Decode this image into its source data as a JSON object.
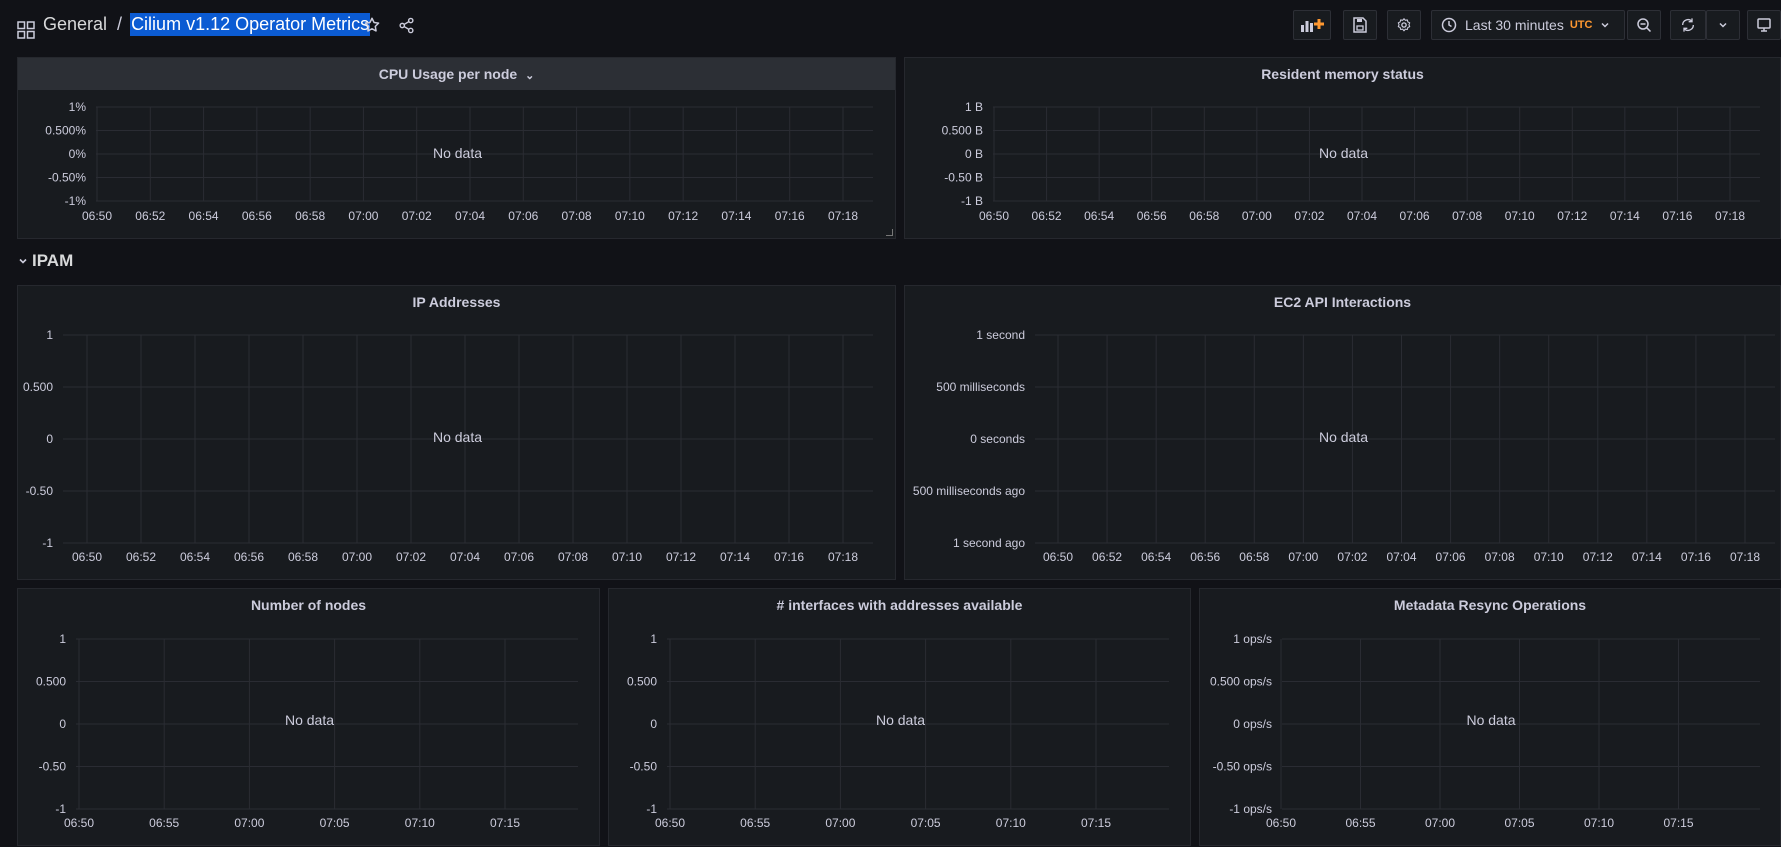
{
  "breadcrumb": {
    "folder": "General",
    "separator": "/",
    "title": "Cilium v1.12 Operator Metrics"
  },
  "toolbar": {
    "time_range": "Last 30 minutes",
    "timezone": "UTC"
  },
  "colors": {
    "background": "#111217",
    "panel": "#181b1f",
    "grid": "#2a2c33",
    "accent_selection": "#0b5bd3",
    "utc": "#ff9830"
  },
  "rows": [
    {
      "title": "IPAM",
      "collapse_icon": "chevron-down-icon"
    }
  ],
  "no_data": "No data",
  "panels": [
    {
      "id": "cpu",
      "title": "CPU Usage per node",
      "chevron": "⌄"
    },
    {
      "id": "mem",
      "title": "Resident memory status"
    },
    {
      "id": "ip",
      "title": "IP Addresses"
    },
    {
      "id": "ec2",
      "title": "EC2 API Interactions"
    },
    {
      "id": "nodes",
      "title": "Number of nodes"
    },
    {
      "id": "ifaces",
      "title": "# interfaces with addresses available"
    },
    {
      "id": "resync",
      "title": "Metadata Resync Operations"
    }
  ],
  "chart_data": [
    {
      "type": "line",
      "title": "CPU Usage per node",
      "series": [],
      "y_ticks": [
        "1%",
        "0.500%",
        "0%",
        "-0.50%",
        "-1%"
      ],
      "x_ticks": [
        "06:50",
        "06:52",
        "06:54",
        "06:56",
        "06:58",
        "07:00",
        "07:02",
        "07:04",
        "07:06",
        "07:08",
        "07:10",
        "07:12",
        "07:14",
        "07:16",
        "07:18"
      ],
      "ylim": [
        -1,
        1
      ],
      "grid": true
    },
    {
      "type": "line",
      "title": "Resident memory status",
      "series": [],
      "y_ticks": [
        "1 B",
        "0.500 B",
        "0 B",
        "-0.50 B",
        "-1 B"
      ],
      "x_ticks": [
        "06:50",
        "06:52",
        "06:54",
        "06:56",
        "06:58",
        "07:00",
        "07:02",
        "07:04",
        "07:06",
        "07:08",
        "07:10",
        "07:12",
        "07:14",
        "07:16",
        "07:18"
      ],
      "ylim": [
        -1,
        1
      ],
      "grid": true
    },
    {
      "type": "line",
      "title": "IP Addresses",
      "series": [],
      "y_ticks": [
        "1",
        "0.500",
        "0",
        "-0.50",
        "-1"
      ],
      "x_ticks": [
        "06:50",
        "06:52",
        "06:54",
        "06:56",
        "06:58",
        "07:00",
        "07:02",
        "07:04",
        "07:06",
        "07:08",
        "07:10",
        "07:12",
        "07:14",
        "07:16",
        "07:18"
      ],
      "ylim": [
        -1,
        1
      ],
      "grid": true
    },
    {
      "type": "line",
      "title": "EC2 API Interactions",
      "series": [],
      "y_ticks": [
        "1 second",
        "500 milliseconds",
        "0 seconds",
        "500 milliseconds ago",
        "1 second ago"
      ],
      "x_ticks": [
        "06:50",
        "06:52",
        "06:54",
        "06:56",
        "06:58",
        "07:00",
        "07:02",
        "07:04",
        "07:06",
        "07:08",
        "07:10",
        "07:12",
        "07:14",
        "07:16",
        "07:18"
      ],
      "ylim": [
        -1,
        1
      ],
      "grid": true
    },
    {
      "type": "line",
      "title": "Number of nodes",
      "series": [],
      "y_ticks": [
        "1",
        "0.500",
        "0",
        "-0.50",
        "-1"
      ],
      "x_ticks": [
        "06:50",
        "06:55",
        "07:00",
        "07:05",
        "07:10",
        "07:15"
      ],
      "ylim": [
        -1,
        1
      ],
      "grid": true
    },
    {
      "type": "line",
      "title": "# interfaces with addresses available",
      "series": [],
      "y_ticks": [
        "1",
        "0.500",
        "0",
        "-0.50",
        "-1"
      ],
      "x_ticks": [
        "06:50",
        "06:55",
        "07:00",
        "07:05",
        "07:10",
        "07:15"
      ],
      "ylim": [
        -1,
        1
      ],
      "grid": true
    },
    {
      "type": "line",
      "title": "Metadata Resync Operations",
      "series": [],
      "y_ticks": [
        "1 ops/s",
        "0.500 ops/s",
        "0 ops/s",
        "-0.50 ops/s",
        "-1 ops/s"
      ],
      "x_ticks": [
        "06:50",
        "06:55",
        "07:00",
        "07:05",
        "07:10",
        "07:15"
      ],
      "ylim": [
        -1,
        1
      ],
      "grid": true
    }
  ]
}
